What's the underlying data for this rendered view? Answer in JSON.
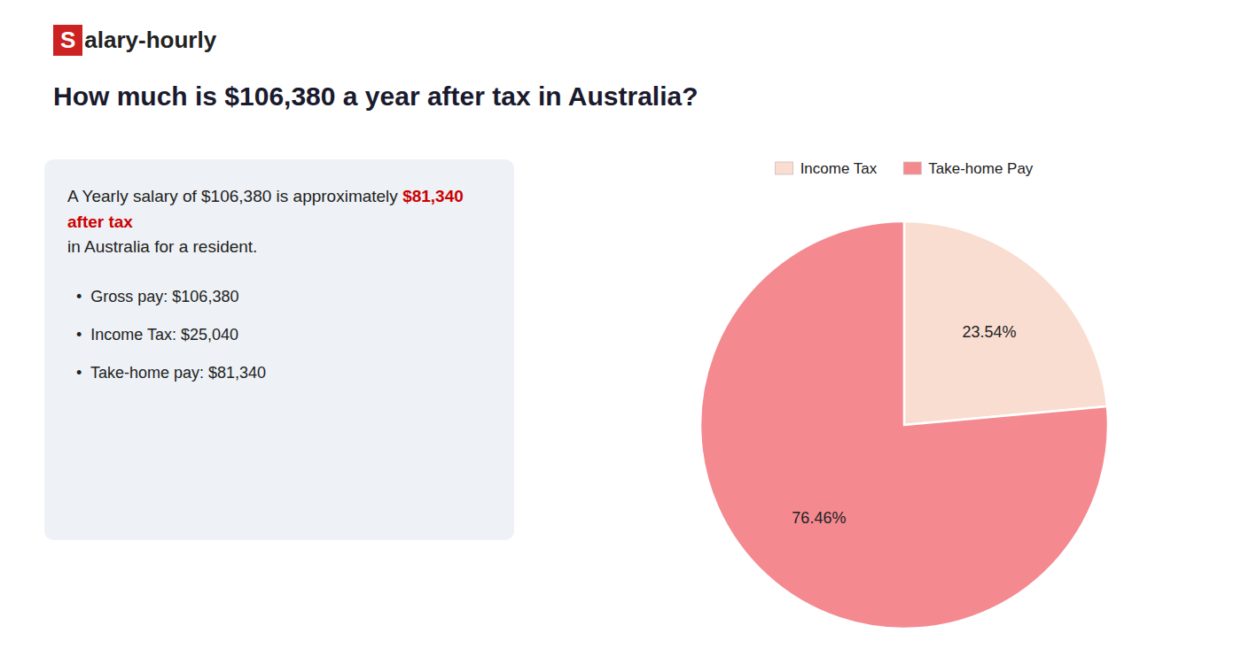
{
  "chart_data": {
    "type": "pie",
    "title": "How much is $106,380 a year after tax in Australia?",
    "categories": [
      "Income Tax",
      "Take-home Pay"
    ],
    "values": [
      23.54,
      76.46
    ],
    "value_labels": [
      "23.54%",
      "76.46%"
    ],
    "colors": [
      "#f9ddd0",
      "#f48990"
    ],
    "data_labels": true,
    "legend": "top",
    "annotations": [
      {
        "text": "S",
        "color": "#cc2222"
      },
      {
        "text": "alary-hourly"
      },
      {
        "text": "A Yearly salary of $106,380 is approximately "
      },
      {
        "text": "$81,340 after tax",
        "color": "#cc0000"
      },
      {
        "text": "in Australia for a resident."
      },
      {
        "text": "•  Gross pay: $106,380"
      },
      {
        "text": "•  Income Tax: $25,040"
      },
      {
        "text": "•  Take-home pay: $81,340"
      }
    ]
  }
}
